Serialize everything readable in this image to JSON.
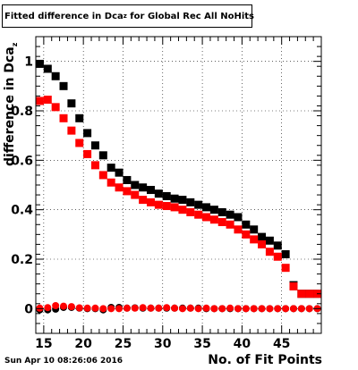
{
  "title": {
    "prefix": "Fitted difference in Dca",
    "subscript": "z",
    "suffix": " for Global Rec All NoHits"
  },
  "footer": {
    "date": "Sun Apr 10 08:26:06 2016"
  },
  "axes": {
    "xlabel": "No. of Fit Points",
    "ylabel_prefix": "difference in Dca",
    "ylabel_subscript": "z"
  },
  "chart_data": {
    "type": "scatter",
    "xlim": [
      14,
      50
    ],
    "ylim": [
      -0.1,
      1.1
    ],
    "x_ticks": [
      15,
      20,
      25,
      30,
      35,
      40,
      45
    ],
    "y_ticks": [
      0,
      0.2,
      0.4,
      0.6,
      0.8,
      1
    ],
    "grid": true,
    "series": [
      {
        "color": "#000000",
        "marker": "square",
        "x": [
          14,
          15,
          16,
          17,
          18,
          19,
          20,
          21,
          22,
          23,
          24,
          25,
          26,
          27,
          28,
          29,
          30,
          31,
          32,
          33,
          34,
          35,
          36,
          37,
          38,
          39,
          40,
          41,
          42,
          43,
          44,
          45,
          46,
          47,
          48,
          49
        ],
        "y": [
          0.99,
          0.97,
          0.94,
          0.9,
          0.83,
          0.77,
          0.71,
          0.66,
          0.62,
          0.57,
          0.55,
          0.52,
          0.5,
          0.49,
          0.48,
          0.465,
          0.455,
          0.445,
          0.44,
          0.43,
          0.42,
          0.41,
          0.4,
          0.39,
          0.38,
          0.37,
          0.34,
          0.32,
          0.29,
          0.275,
          0.255,
          0.22,
          0.095,
          0.06,
          0.06,
          0.06
        ]
      },
      {
        "color": "#ff0000",
        "marker": "square",
        "x": [
          14,
          15,
          16,
          17,
          18,
          19,
          20,
          21,
          22,
          23,
          24,
          25,
          26,
          27,
          28,
          29,
          30,
          31,
          32,
          33,
          34,
          35,
          36,
          37,
          38,
          39,
          40,
          41,
          42,
          43,
          44,
          45,
          46,
          47,
          48,
          49
        ],
        "y": [
          0.84,
          0.845,
          0.815,
          0.77,
          0.72,
          0.67,
          0.625,
          0.58,
          0.54,
          0.51,
          0.49,
          0.475,
          0.46,
          0.44,
          0.43,
          0.42,
          0.415,
          0.41,
          0.4,
          0.39,
          0.38,
          0.37,
          0.36,
          0.35,
          0.34,
          0.32,
          0.3,
          0.28,
          0.26,
          0.23,
          0.21,
          0.165,
          0.09,
          0.06,
          0.06,
          0.06
        ]
      },
      {
        "color": "#000000",
        "marker": "circle",
        "x": [
          14,
          15,
          16,
          17,
          18,
          19,
          20,
          21,
          22,
          23,
          24,
          25,
          26,
          27,
          28,
          29,
          30,
          31,
          32,
          33,
          34,
          35,
          36,
          37,
          38,
          39,
          40,
          41,
          42,
          43,
          44,
          45,
          46,
          47,
          48,
          49
        ],
        "y": [
          -0.005,
          -0.005,
          -0.002,
          0.005,
          0.005,
          0.002,
          0.0,
          0.0,
          -0.005,
          0.005,
          0.005,
          0.002,
          0.003,
          0.002,
          0.002,
          0.002,
          0.002,
          0.002,
          0.002,
          0.002,
          0.002,
          0.0,
          0.0,
          0.0,
          0.0,
          0.0,
          0.0,
          0.0,
          0.0,
          0.0,
          0.0,
          0.0,
          0.0,
          0.0,
          0.0,
          0.0
        ]
      },
      {
        "color": "#ff0000",
        "marker": "circle",
        "x": [
          14,
          15,
          16,
          17,
          18,
          19,
          20,
          21,
          22,
          23,
          24,
          25,
          26,
          27,
          28,
          29,
          30,
          31,
          32,
          33,
          34,
          35,
          36,
          37,
          38,
          39,
          40,
          41,
          42,
          43,
          44,
          45,
          46,
          47,
          48,
          49
        ],
        "y": [
          0.002,
          0.004,
          0.012,
          0.01,
          0.008,
          0.003,
          0.002,
          0.002,
          0.0,
          0.0,
          0.0,
          0.002,
          0.002,
          0.004,
          0.002,
          0.002,
          0.004,
          0.002,
          0.0,
          0.002,
          0.0,
          0.002,
          0.0,
          0.0,
          0.002,
          0.0,
          0.0,
          0.0,
          0.0,
          0.0,
          0.0,
          0.0,
          0.0,
          0.0,
          0.0,
          0.0
        ]
      }
    ]
  }
}
